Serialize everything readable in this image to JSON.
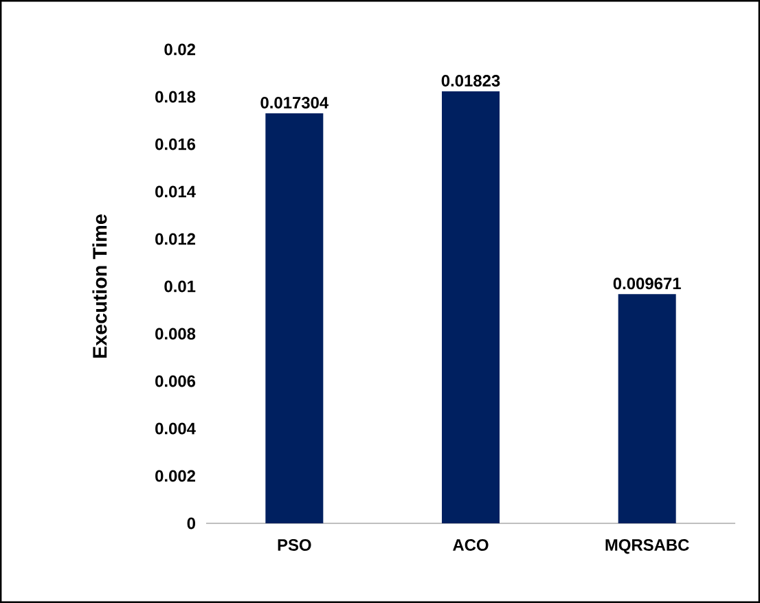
{
  "chart_data": {
    "type": "bar",
    "ylabel": "Execution Time",
    "categories": [
      "PSO",
      "ACO",
      "MQRSABC"
    ],
    "values": [
      0.017304,
      0.01823,
      0.009671
    ],
    "color": "#002060",
    "data_labels": true,
    "ylim": [
      0,
      0.02
    ],
    "yticks": [
      0,
      0.002,
      0.004,
      0.006,
      0.008,
      0.01,
      0.012,
      0.014,
      0.016,
      0.018,
      0.02
    ]
  }
}
